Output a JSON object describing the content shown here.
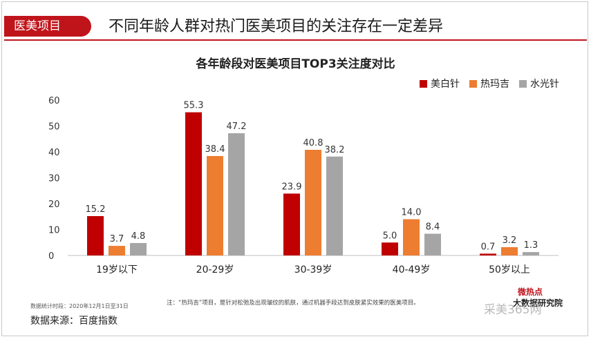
{
  "header": {
    "tag": "医美项目",
    "headline": "不同年龄人群对热门医美项目的关注存在一定差异"
  },
  "footer": {
    "stat_period": "数据统计时段：2020年12月1日至31日",
    "source": "数据来源：百度指数",
    "note": "注：“热玛吉”项目，是针对松弛及出现皱纹的肌肤，通过机器手段达到皮肤紧实效果的医美项目。",
    "logo_top": "微热点",
    "logo_sub": "大数据研究院",
    "watermark": "采美365网"
  },
  "chart_data": {
    "type": "bar",
    "title": "各年龄段对医美项目TOP3关注度对比",
    "categories": [
      "19岁以下",
      "20-29岁",
      "30-39岁",
      "40-49岁",
      "50岁以上"
    ],
    "series": [
      {
        "name": "美白针",
        "values": [
          15.2,
          55.3,
          23.9,
          5.0,
          0.7
        ],
        "color": "#c00000"
      },
      {
        "name": "热玛吉",
        "values": [
          3.7,
          38.4,
          40.8,
          14.0,
          3.2
        ],
        "color": "#ed7d31"
      },
      {
        "name": "水光针",
        "values": [
          4.8,
          47.2,
          38.2,
          8.4,
          1.3
        ],
        "color": "#a5a5a5"
      }
    ],
    "ylim": [
      0,
      60
    ],
    "yticks": [
      0,
      10,
      20,
      30,
      40,
      50,
      60
    ],
    "value_labels": [
      [
        "15.2",
        "55.3",
        "23.9",
        "5.0",
        "0.7"
      ],
      [
        "3.7",
        "38.4",
        "40.8",
        "14.0",
        "3.2"
      ],
      [
        "4.8",
        "47.2",
        "38.2",
        "8.4",
        "1.3"
      ]
    ],
    "legend_position": "top-right",
    "grid": false
  }
}
